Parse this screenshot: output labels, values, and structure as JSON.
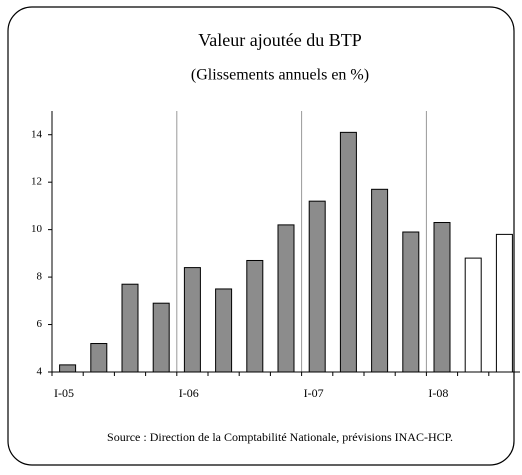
{
  "chart_data": {
    "type": "bar",
    "title": "Valeur ajoutée du BTP",
    "subtitle": "(Glissements annuels en %)",
    "source": "Source : Direction de la Comptabilité Nationale, prévisions INAC-HCP.",
    "categories": [
      "I-05",
      null,
      null,
      null,
      "I-06",
      null,
      null,
      null,
      "I-07",
      null,
      null,
      null,
      "I-08",
      null,
      null
    ],
    "values": [
      4.3,
      5.2,
      7.7,
      6.9,
      8.4,
      7.5,
      8.7,
      10.2,
      11.2,
      14.1,
      11.7,
      9.9,
      10.3,
      8.8,
      9.8
    ],
    "colors": [
      "#8c8c8c",
      "#8c8c8c",
      "#8c8c8c",
      "#8c8c8c",
      "#8c8c8c",
      "#8c8c8c",
      "#8c8c8c",
      "#8c8c8c",
      "#8c8c8c",
      "#8c8c8c",
      "#8c8c8c",
      "#8c8c8c",
      "#8c8c8c",
      "#ffffff",
      "#ffffff"
    ],
    "ylim": [
      4,
      15
    ],
    "yticks": [
      4,
      6,
      8,
      10,
      12,
      14
    ],
    "grid": false
  }
}
